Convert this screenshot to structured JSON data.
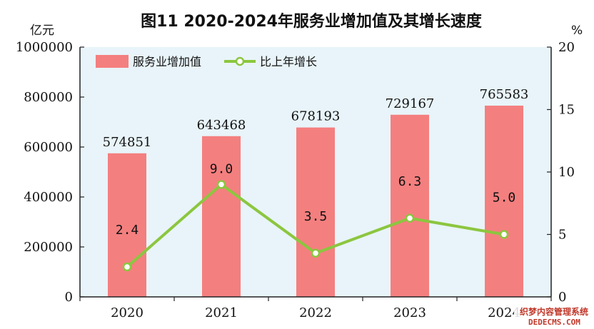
{
  "chart_data": {
    "type": "bar",
    "title": "图11    2020-2024年服务业增加值及其增长速度",
    "ylabel_left": "亿元",
    "ylabel_right": "%",
    "categories": [
      "2020",
      "2021",
      "2022",
      "2023",
      "2024"
    ],
    "ylim_left": [
      0,
      1000000
    ],
    "ylim_right": [
      0,
      20
    ],
    "yticks_left": [
      "0",
      "200000",
      "400000",
      "600000",
      "800000",
      "1000000"
    ],
    "yticks_right": [
      "0",
      "5",
      "10",
      "15",
      "20"
    ],
    "legend_position": "top-left",
    "grid": false,
    "series": [
      {
        "name": "服务业增加值",
        "type": "bar",
        "axis": "left",
        "color": "#f47f7f",
        "values": [
          574851,
          643468,
          678193,
          729167,
          765583
        ],
        "labels": [
          "574851",
          "643468",
          "678193",
          "729167",
          "765583"
        ]
      },
      {
        "name": "比上年增长",
        "type": "line",
        "axis": "right",
        "color": "#8cc63f",
        "values": [
          2.4,
          9.0,
          3.5,
          6.3,
          5.0
        ],
        "labels": [
          "2.4",
          "9.0",
          "3.5",
          "6.3",
          "5.0"
        ]
      }
    ]
  },
  "watermark": {
    "line1": "织梦内容管理系统",
    "line2": "DEDECMS.COM"
  }
}
